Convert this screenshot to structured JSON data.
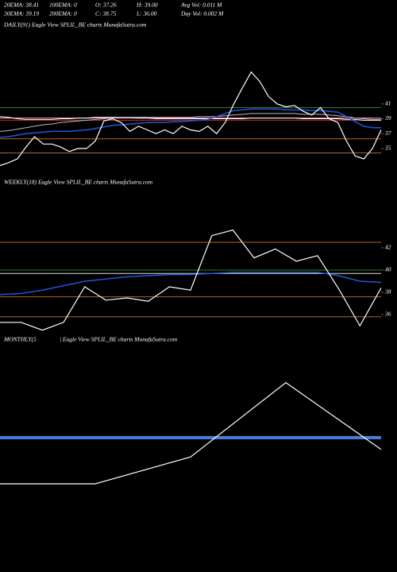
{
  "header": {
    "rows": [
      [
        "20EMA: 38.41",
        "100EMA: 0",
        "O: 37.26",
        "H: 39.00",
        "Avg Vol: 0.011 M"
      ],
      [
        "30EMA: 39.19",
        "200EMA: 0",
        "C: 38.75",
        "L: 36.00",
        "Day Vol: 0.002 M"
      ]
    ]
  },
  "chart_data": [
    {
      "type": "line",
      "title": "DAILY(91) Eagle  View  SPLIL_BE charts MunafaSutra.com",
      "ylim": [
        32,
        46
      ],
      "yticks": [
        41,
        39,
        37,
        35
      ],
      "hlines": [
        {
          "value": 40.5,
          "color": "#2e7d32"
        },
        {
          "value": 39.1,
          "color": "#ff9ec4"
        },
        {
          "value": 38.8,
          "color": "#cc2222"
        },
        {
          "value": 36.3,
          "color": "#b5651d"
        },
        {
          "value": 34.4,
          "color": "#b5651d"
        }
      ],
      "series": [
        {
          "color": "#ffffff",
          "width": 1,
          "values": [
            39.3,
            39.2,
            39.0,
            38.9,
            38.9,
            38.9,
            38.9,
            39.0,
            39.0,
            39.1,
            39.1,
            39.2,
            39.2,
            39.2,
            39.2,
            39.2,
            39.1,
            39.1,
            39.0,
            39.0,
            39.0,
            39.0,
            39.0,
            39.0,
            39.0,
            39.0,
            39.0,
            39.0,
            39.0,
            39.1,
            39.1,
            39.1,
            39.1,
            39.1,
            39.1,
            39.0,
            39.0,
            39.0,
            39.0,
            39.0,
            38.9,
            38.9,
            38.8,
            38.8,
            38.8
          ]
        },
        {
          "color": "#bbbbbb",
          "width": 1,
          "values": [
            37.3,
            37.4,
            37.6,
            37.8,
            38.0,
            38.2,
            38.3,
            38.5,
            38.6,
            38.7,
            38.8,
            38.9,
            39.0,
            39.1,
            39.2,
            39.2,
            39.2,
            39.2,
            39.2,
            39.2,
            39.2,
            39.2,
            39.2,
            39.3,
            39.3,
            39.3,
            39.4,
            39.5,
            39.6,
            39.7,
            39.7,
            39.7,
            39.7,
            39.7,
            39.7,
            39.6,
            39.6,
            39.6,
            39.5,
            39.4,
            39.3,
            39.1,
            39.0,
            38.9,
            38.9
          ]
        },
        {
          "color": "#2255dd",
          "width": 1.5,
          "values": [
            36.5,
            36.6,
            36.8,
            37.0,
            37.1,
            37.2,
            37.3,
            37.3,
            37.3,
            37.4,
            37.5,
            37.7,
            37.9,
            38.1,
            38.2,
            38.3,
            38.4,
            38.5,
            38.5,
            38.5,
            38.6,
            38.6,
            38.7,
            38.8,
            38.9,
            39.3,
            39.7,
            40.1,
            40.2,
            40.3,
            40.3,
            40.3,
            40.3,
            40.2,
            40.2,
            40.2,
            40.1,
            40.1,
            40.0,
            39.9,
            39.3,
            38.6,
            38.0,
            37.8,
            37.8
          ]
        },
        {
          "color": "#ffffff",
          "width": 1.2,
          "values": [
            32.7,
            33.1,
            33.6,
            35.2,
            36.6,
            35.6,
            35.6,
            35.2,
            34.6,
            35.0,
            35.0,
            36.0,
            38.7,
            39.0,
            38.5,
            37.3,
            38.0,
            37.5,
            37.0,
            37.5,
            37.0,
            38.0,
            37.5,
            37.3,
            38.0,
            37.0,
            38.5,
            41.0,
            43.2,
            45.3,
            44.0,
            42.0,
            41.0,
            40.6,
            40.8,
            40.0,
            39.5,
            40.5,
            39.0,
            38.5,
            36.0,
            34.0,
            33.6,
            35.0,
            37.5
          ]
        }
      ]
    },
    {
      "type": "line",
      "title": "WEEKLY(18) Eagle  View  SPLIL_BE charts MunafaSutra.com",
      "ylim": [
        34,
        45
      ],
      "yticks": [
        42,
        40,
        38,
        36
      ],
      "hlines": [
        {
          "value": 42.5,
          "color": "#b5651d"
        },
        {
          "value": 40.0,
          "color": "#2e7d32"
        },
        {
          "value": 39.7,
          "color": "#dddddd"
        },
        {
          "value": 37.6,
          "color": "#b5651d"
        },
        {
          "value": 35.8,
          "color": "#b5651d"
        }
      ],
      "series": [
        {
          "color": "#2255dd",
          "width": 1.5,
          "values": [
            37.8,
            37.9,
            38.2,
            38.6,
            39.0,
            39.2,
            39.4,
            39.5,
            39.6,
            39.6,
            39.7,
            39.8,
            39.8,
            39.8,
            39.8,
            39.8,
            39.5,
            39.0,
            38.9
          ]
        },
        {
          "color": "#ffffff",
          "width": 1.2,
          "values": [
            35.3,
            35.3,
            34.6,
            35.3,
            38.5,
            37.3,
            37.5,
            37.2,
            38.5,
            38.2,
            43.1,
            43.6,
            41.1,
            41.9,
            40.8,
            41.3,
            38.3,
            35.0,
            38.4
          ]
        }
      ]
    },
    {
      "type": "line",
      "title": "MONTHLY(5",
      "subtitle": "| Eagle  View  SPLIL_BE charts MunafaSutra.com",
      "ylim": [
        20,
        50
      ],
      "yticks": [],
      "hlines": [
        {
          "value": 37.2,
          "color": "#4a7fe0",
          "width": 4
        }
      ],
      "series": [
        {
          "color": "#ffffff",
          "width": 1.2,
          "values": [
            30.5,
            30.5,
            34.4,
            45.2,
            35.5
          ]
        }
      ]
    }
  ]
}
